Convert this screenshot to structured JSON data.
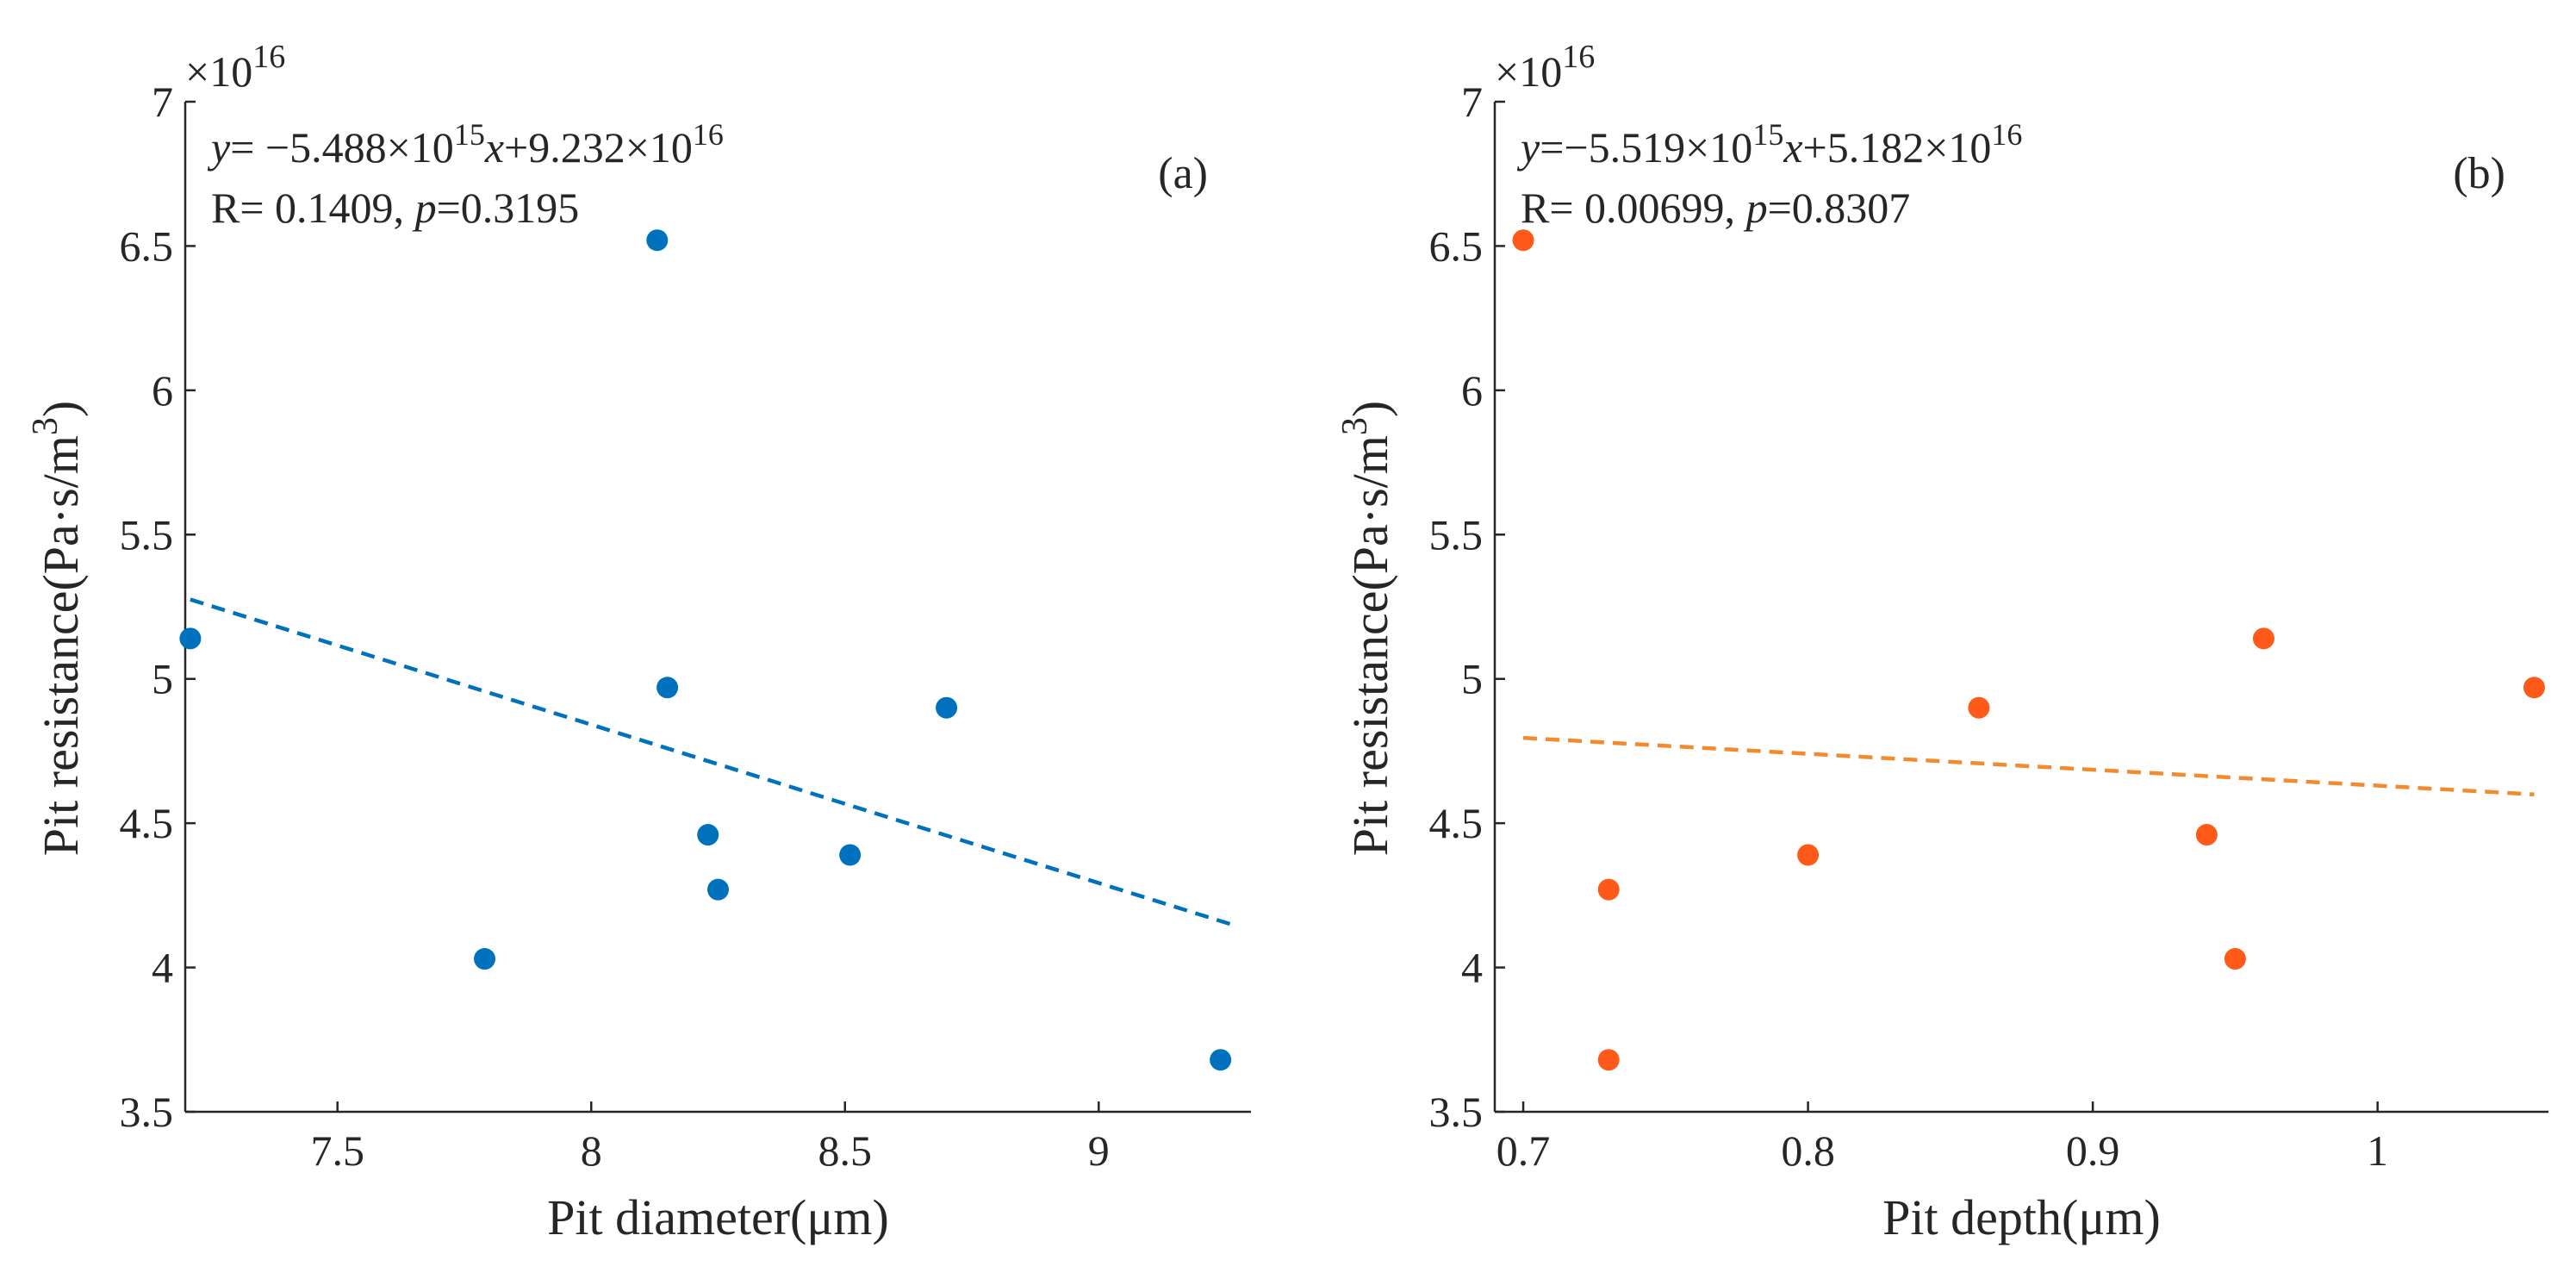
{
  "chart_data": [
    {
      "type": "scatter",
      "panel_label": "(a)",
      "xlabel": "Pit diameter(μm)",
      "ylabel": "Pit resistance(Pa·s/m",
      "ylabel_sup": "3",
      "ylabel_close": ")",
      "y_multiplier": {
        "base": "×10",
        "exp": "16"
      },
      "xlim": [
        7.2,
        9.3
      ],
      "ylim": [
        3.5,
        7
      ],
      "xticks": [
        7.5,
        8,
        8.5,
        9
      ],
      "xtick_labels": [
        "7.5",
        "8",
        "8.5",
        "9"
      ],
      "yticks": [
        3.5,
        4,
        4.5,
        5,
        5.5,
        6,
        6.5,
        7
      ],
      "ytick_labels": [
        "3.5",
        "4",
        "4.5",
        "5",
        "5.5",
        "6",
        "6.5",
        "7"
      ],
      "color": "#0072BD",
      "points": {
        "x": [
          7.21,
          7.79,
          8.13,
          8.15,
          8.23,
          8.25,
          8.51,
          8.7,
          9.24
        ],
        "y": [
          5.14,
          4.03,
          6.52,
          4.97,
          4.46,
          4.27,
          4.39,
          4.9,
          3.68
        ]
      },
      "fit": {
        "slope": -0.5488,
        "intercept": 9.232,
        "x_range": [
          7.21,
          9.26
        ]
      },
      "equation": {
        "y": "y",
        "eq": "= −5.488×10",
        "exp1": "15",
        "x": "x",
        "rest": "+9.232×10",
        "exp2": "16"
      },
      "stats": {
        "r_text": "R= 0.1409, ",
        "p": "p",
        "p_text": "=0.3195"
      }
    },
    {
      "type": "scatter",
      "panel_label": "(b)",
      "xlabel": "Pit depth(μm)",
      "ylabel": "Pit resistance(Pa·s/m",
      "ylabel_sup": "3",
      "ylabel_close": ")",
      "y_multiplier": {
        "base": "×10",
        "exp": "16"
      },
      "xlim": [
        0.69,
        1.06
      ],
      "ylim": [
        3.5,
        7
      ],
      "xticks": [
        0.7,
        0.8,
        0.9,
        1
      ],
      "xtick_labels": [
        "0.7",
        "0.8",
        "0.9",
        "1"
      ],
      "yticks": [
        3.5,
        4,
        4.5,
        5,
        5.5,
        6,
        6.5,
        7
      ],
      "ytick_labels": [
        "3.5",
        "4",
        "4.5",
        "5",
        "5.5",
        "6",
        "6.5",
        "7"
      ],
      "color": "#FF5A1A",
      "fit_color": "#F28A2E",
      "points": {
        "x": [
          0.7,
          0.73,
          0.73,
          0.8,
          0.86,
          0.94,
          0.95,
          0.96,
          1.055
        ],
        "y": [
          6.52,
          4.27,
          3.68,
          4.39,
          4.9,
          4.46,
          4.03,
          5.14,
          4.97
        ]
      },
      "fit": {
        "slope": -0.5519,
        "intercept": 5.182,
        "x_range": [
          0.7,
          1.055
        ]
      },
      "equation": {
        "y": "y",
        "eq": "=−5.519×10",
        "exp1": "15",
        "x": "x",
        "rest": "+5.182×10",
        "exp2": "16"
      },
      "stats": {
        "r_text": "R= 0.00699, ",
        "p": "p",
        "p_text": "=0.8307"
      }
    }
  ]
}
